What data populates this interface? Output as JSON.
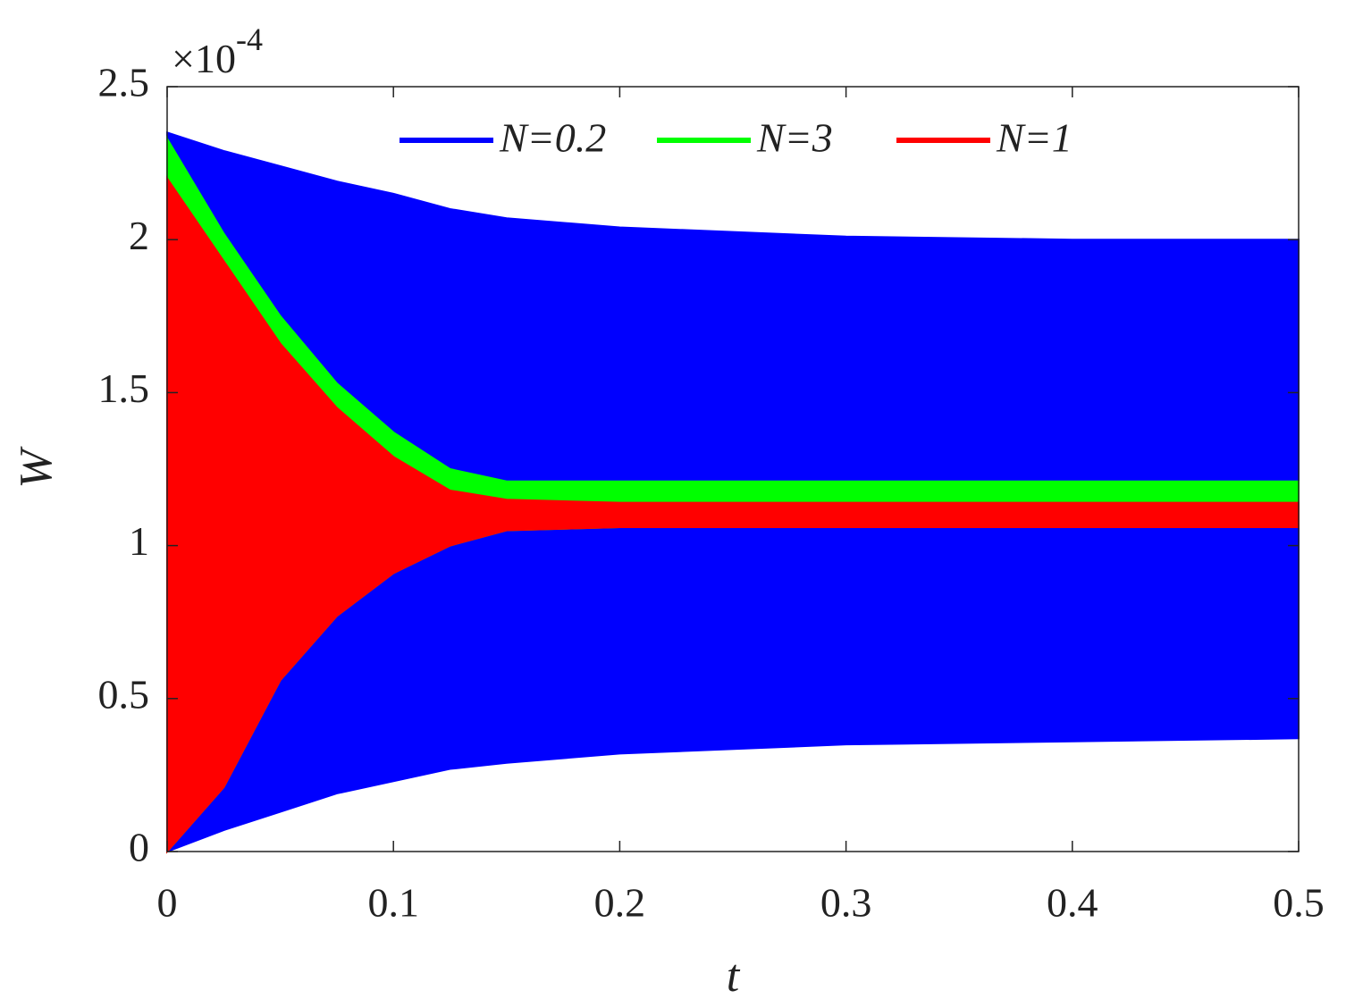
{
  "chart_data": {
    "type": "band",
    "xlabel": "t",
    "ylabel": "W",
    "y_scale_label": {
      "base": "×10",
      "exponent": "-4"
    },
    "x": [
      0,
      0.025,
      0.05,
      0.075,
      0.1,
      0.125,
      0.15,
      0.2,
      0.3,
      0.4,
      0.5
    ],
    "series": [
      {
        "name": "N=0.2",
        "color": "#0000ff",
        "upper": [
          2.35,
          2.29,
          2.24,
          2.19,
          2.15,
          2.1,
          2.07,
          2.04,
          2.01,
          2.0,
          2.0
        ],
        "lower": [
          0,
          0.07,
          0.13,
          0.19,
          0.23,
          0.27,
          0.29,
          0.32,
          0.35,
          0.36,
          0.37
        ]
      },
      {
        "name": "N=3",
        "color": "#00ff00",
        "upper": [
          2.33,
          2.02,
          1.75,
          1.53,
          1.37,
          1.25,
          1.21,
          1.21,
          1.21,
          1.21,
          1.21
        ],
        "lower": [
          0,
          0.21,
          0.56,
          0.77,
          0.91,
          1.0,
          1.05,
          1.06,
          1.06,
          1.06,
          1.06
        ]
      },
      {
        "name": "N=1",
        "color": "#ff0000",
        "upper": [
          2.2,
          1.93,
          1.66,
          1.45,
          1.29,
          1.18,
          1.15,
          1.14,
          1.14,
          1.14,
          1.14
        ],
        "lower": [
          0,
          0.21,
          0.56,
          0.77,
          0.91,
          1.0,
          1.05,
          1.06,
          1.06,
          1.06,
          1.06
        ]
      }
    ],
    "xlim": [
      0,
      0.5
    ],
    "xticks": [
      0,
      0.1,
      0.2,
      0.3,
      0.4,
      0.5
    ],
    "ylim": [
      0,
      2.5
    ],
    "yticks": [
      0,
      0.5,
      1,
      1.5,
      2,
      2.5
    ],
    "legend": "top"
  }
}
